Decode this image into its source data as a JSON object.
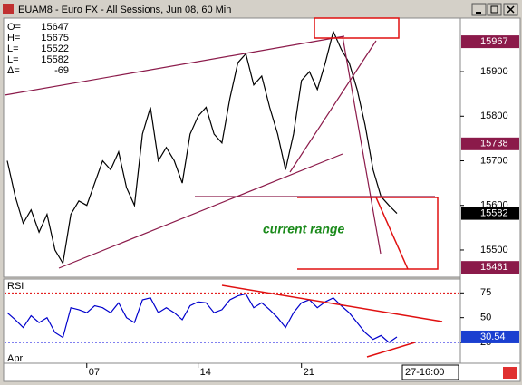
{
  "window": {
    "title": "EUAM8 - Euro FX - All Sessions, Jun 08, 60 Min"
  },
  "info": [
    {
      "label": "O=",
      "value": 15647
    },
    {
      "label": "H=",
      "value": 15675
    },
    {
      "label": "L=",
      "value": 15522
    },
    {
      "label": "L=",
      "value": 15582
    },
    {
      "label": "Δ=",
      "value": -69
    }
  ],
  "chart_data": [
    {
      "type": "line",
      "color": "#000000",
      "categories": [
        "Apr",
        null,
        null,
        null,
        null,
        null,
        null,
        null,
        null,
        null,
        "07",
        null,
        null,
        null,
        null,
        null,
        null,
        null,
        null,
        null,
        null,
        null,
        null,
        null,
        "14",
        null,
        null,
        null,
        null,
        null,
        null,
        null,
        null,
        null,
        null,
        null,
        null,
        "21",
        null,
        null,
        null,
        null,
        null,
        null,
        null,
        null,
        null,
        null,
        null,
        "27-16:00"
      ],
      "values": [
        15700,
        15620,
        15560,
        15590,
        15540,
        15580,
        15500,
        15470,
        15580,
        15610,
        15600,
        15650,
        15700,
        15680,
        15720,
        15640,
        15600,
        15760,
        15820,
        15700,
        15730,
        15700,
        15650,
        15760,
        15800,
        15820,
        15760,
        15740,
        15840,
        15920,
        15940,
        15870,
        15890,
        15820,
        15760,
        15680,
        15760,
        15880,
        15900,
        15860,
        15920,
        15990,
        15950,
        15920,
        15860,
        15780,
        15680,
        15620,
        15600,
        15582
      ],
      "ylim": [
        15439,
        16020
      ],
      "yticks": [
        15500,
        15600,
        15700,
        15800,
        15900
      ],
      "levels": [
        {
          "value": 15967,
          "color": "#8b1a4a"
        },
        {
          "value": 15738,
          "color": "#8b1a4a"
        },
        {
          "value": 15582,
          "color": "#000000"
        },
        {
          "value": 15461,
          "color": "#8b1a4a"
        }
      ],
      "annotation": "current range"
    },
    {
      "type": "line",
      "title": "RSI",
      "color": "#0000cc",
      "values": [
        55,
        48,
        40,
        52,
        45,
        50,
        35,
        30,
        60,
        58,
        55,
        62,
        60,
        55,
        65,
        50,
        45,
        68,
        70,
        55,
        60,
        55,
        48,
        62,
        66,
        65,
        55,
        58,
        68,
        72,
        74,
        60,
        65,
        58,
        50,
        40,
        55,
        65,
        68,
        60,
        66,
        70,
        62,
        55,
        45,
        35,
        28,
        32,
        25,
        30.54
      ],
      "ylim": [
        4,
        89
      ],
      "yticks": [
        25,
        50,
        75
      ],
      "bands": [
        {
          "value": 75,
          "color": "#e00000"
        },
        {
          "value": 25,
          "color": "#0000e0"
        }
      ],
      "levels": [
        {
          "value": 30.54,
          "color": "#1a3fd0"
        }
      ]
    }
  ]
}
